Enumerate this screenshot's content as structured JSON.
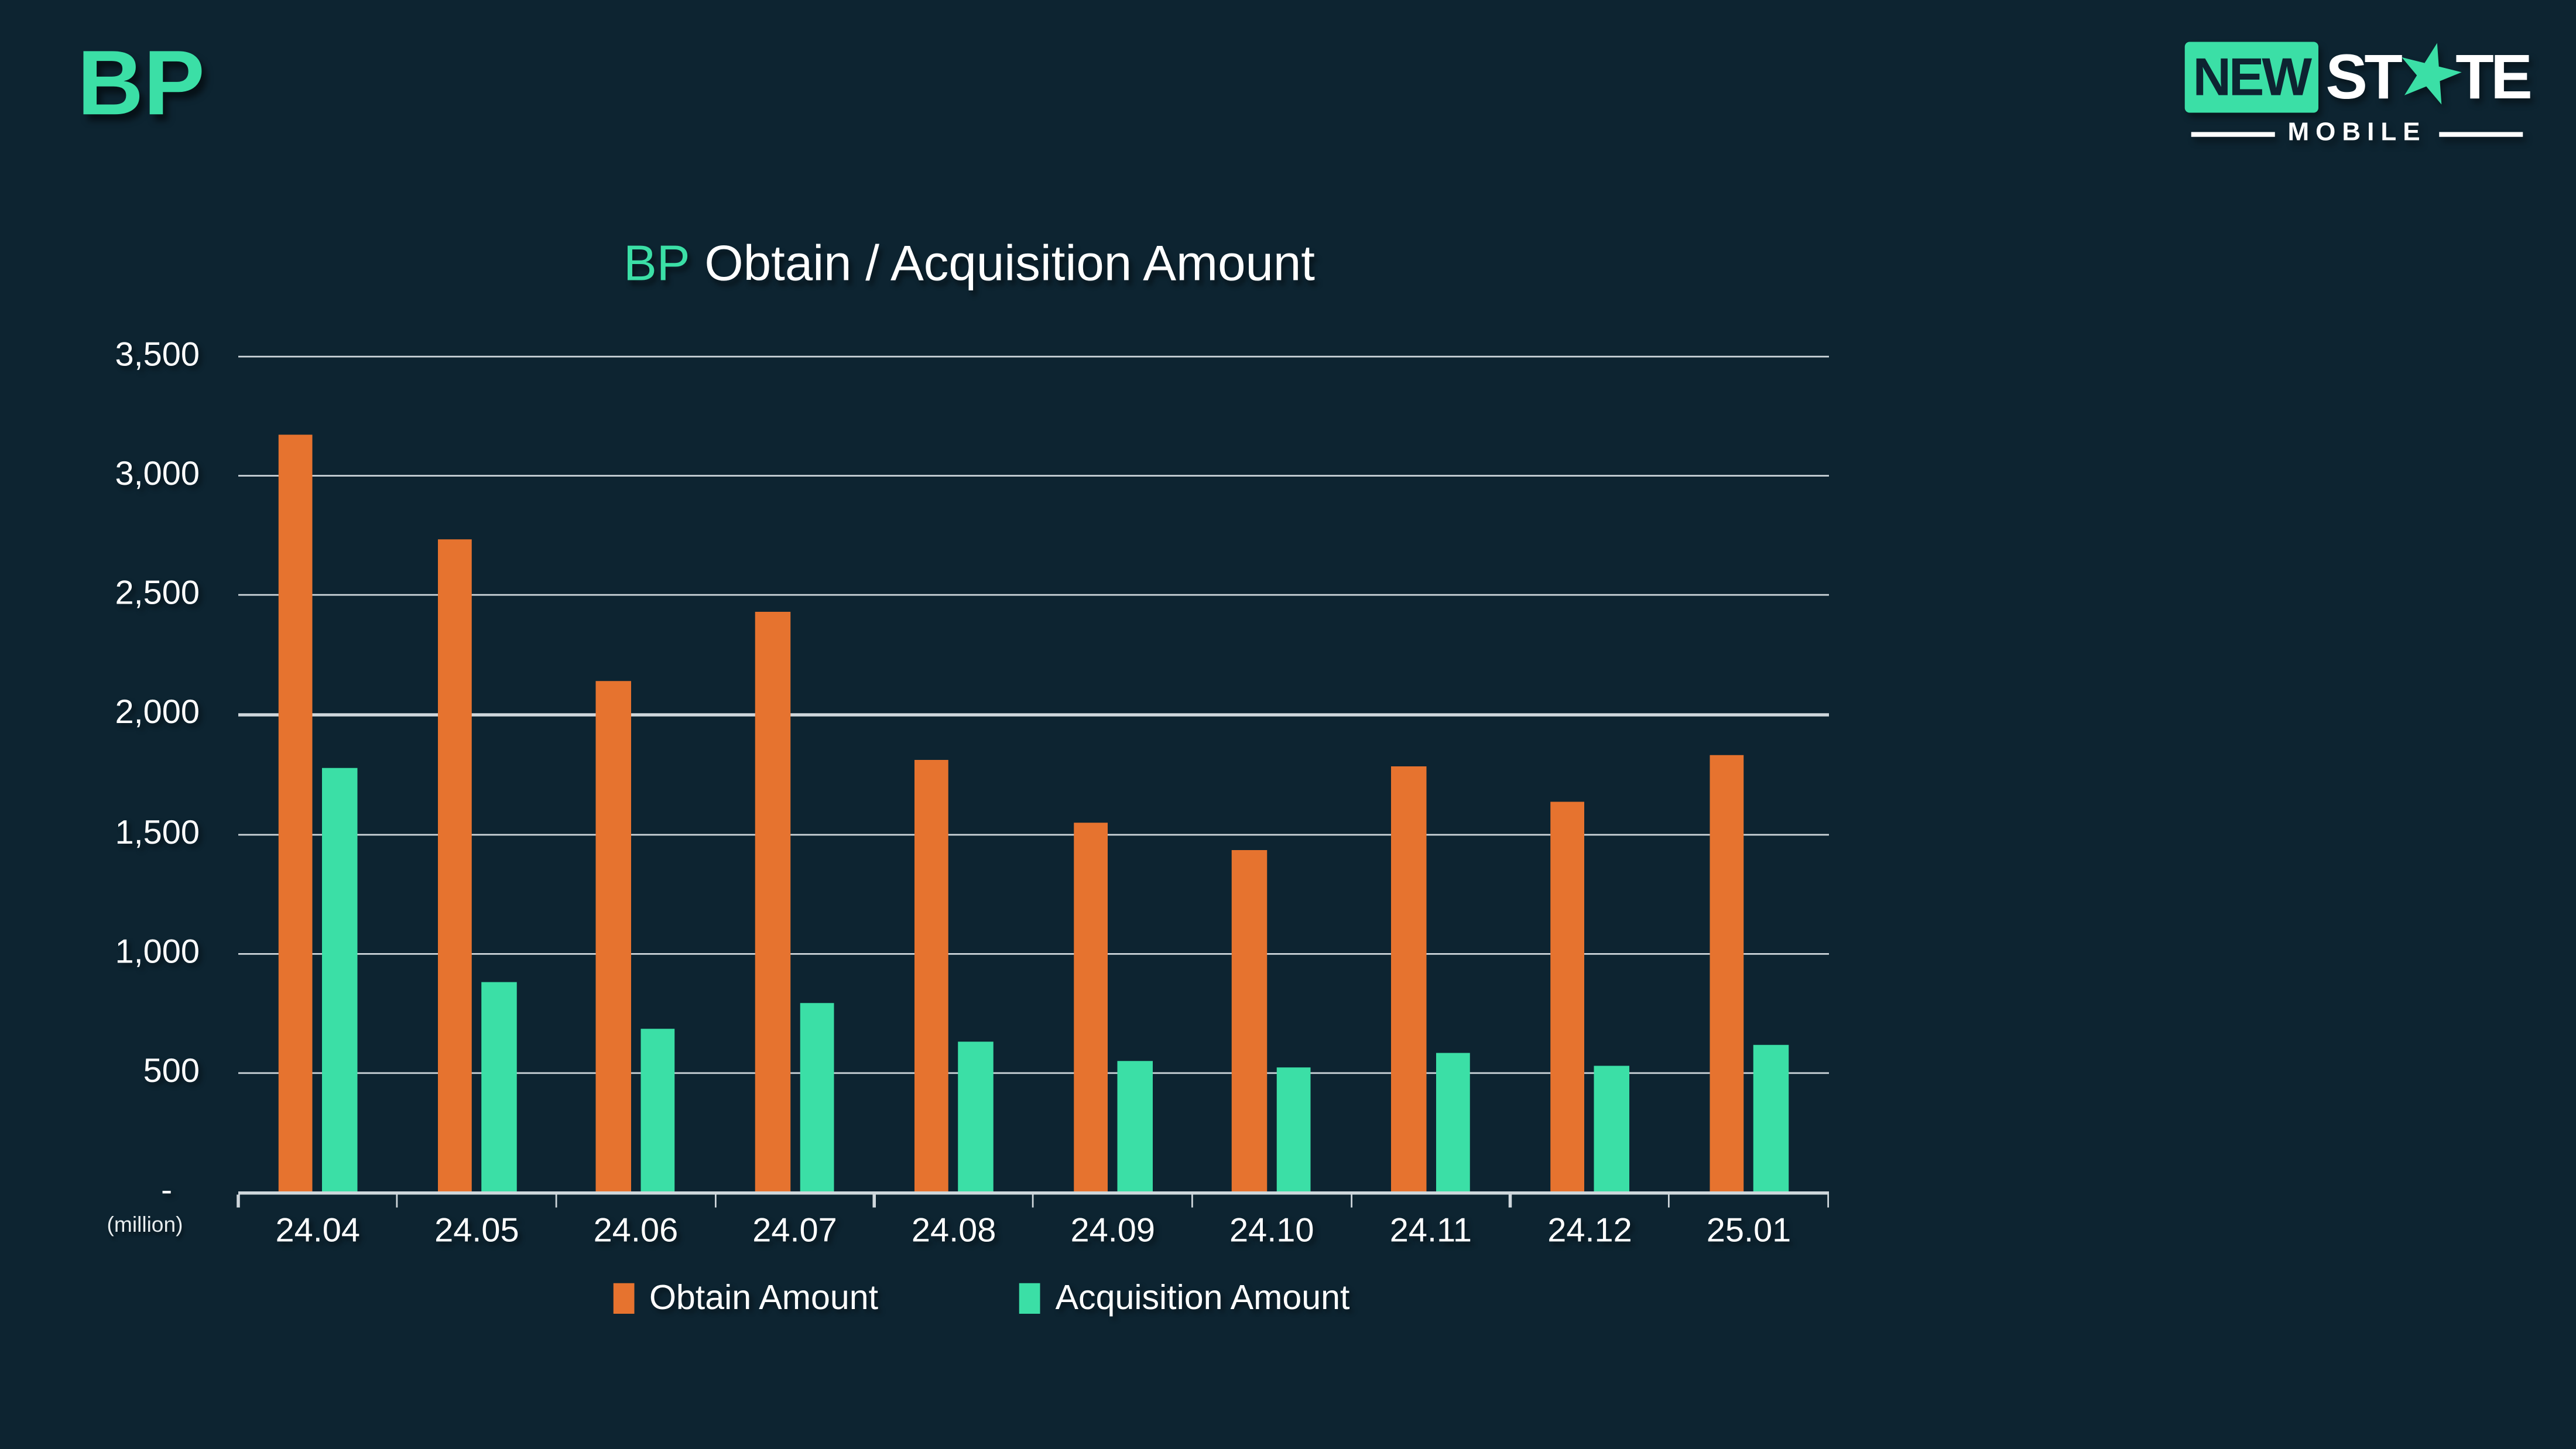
{
  "slide": {
    "page_title": "BP"
  },
  "logo": {
    "boxed_word": "NEW",
    "state_part1": "ST",
    "state_star": "★",
    "state_part2": "TE",
    "subtitle": "MOBILE"
  },
  "colors": {
    "background": "#0D2431",
    "accent": "#3BDFA6",
    "orange": "#E6732F",
    "gridline": "#CFD7DC",
    "text": "#FFFFFF"
  },
  "chart_data": {
    "type": "bar",
    "title": "BP Obtain / Acquisition Amount",
    "title_prefix": "BP",
    "title_rest": "Obtain / Acquisition Amount",
    "unit_note": "(million)",
    "zero_label": "-",
    "categories": [
      "24.04",
      "24.05",
      "24.06",
      "24.07",
      "24.08",
      "24.09",
      "24.10",
      "24.11",
      "24.12",
      "25.01"
    ],
    "series": [
      {
        "name": "Obtain Amount",
        "color": "#E6732F",
        "values": [
          3170,
          2730,
          2135,
          2425,
          1810,
          1545,
          1430,
          1780,
          1630,
          1825
        ]
      },
      {
        "name": "Acquisition Amount",
        "color": "#3BDFA6",
        "values": [
          1775,
          875,
          680,
          790,
          630,
          545,
          520,
          580,
          525,
          615
        ]
      }
    ],
    "y_axis": {
      "min": 0,
      "max": 3500,
      "step": 500,
      "tick_labels": [
        "3,500",
        "3,000",
        "2,500",
        "2,000",
        "1,500",
        "1,000",
        "500"
      ]
    },
    "values_unit": "million",
    "grid": true,
    "legend_position": "bottom"
  }
}
